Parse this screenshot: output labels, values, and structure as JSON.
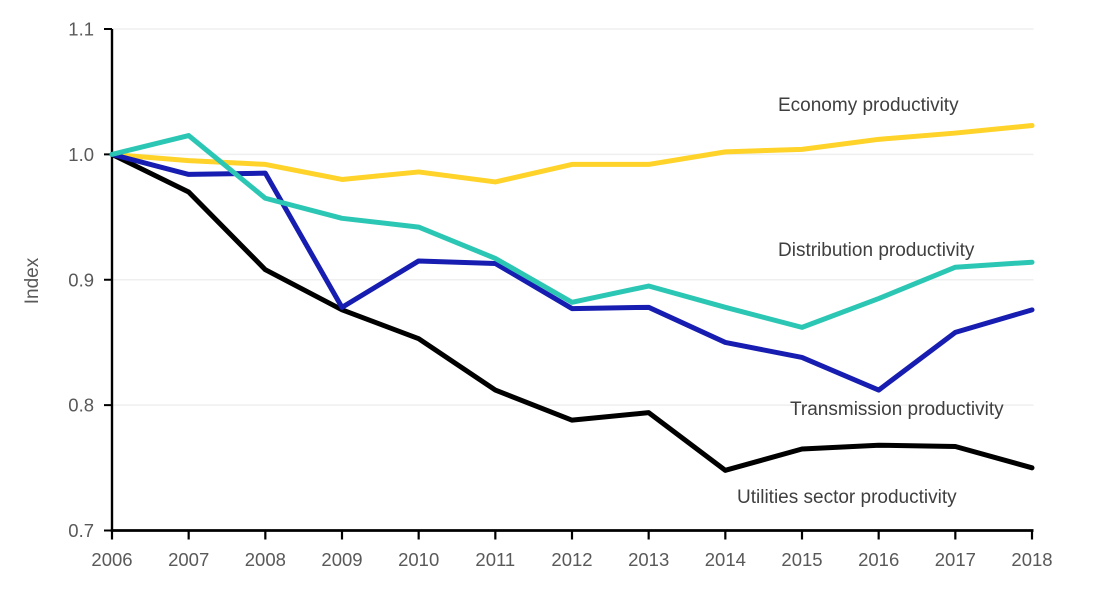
{
  "chart_data": {
    "type": "line",
    "title": "",
    "ylabel": "Index",
    "xlabel": "",
    "x": [
      2006,
      2007,
      2008,
      2009,
      2010,
      2011,
      2012,
      2013,
      2014,
      2015,
      2016,
      2017,
      2018
    ],
    "x_tick_labels": [
      "2006",
      "2007",
      "2008",
      "2009",
      "2010",
      "2011",
      "2012",
      "2013",
      "2014",
      "2015",
      "2016",
      "2017",
      "2018"
    ],
    "ylim": [
      0.7,
      1.1
    ],
    "yticks": [
      1.1,
      1.0,
      0.9,
      0.8,
      0.7
    ],
    "ytick_labels": [
      "1.1",
      "1.0",
      "0.9",
      "0.8",
      "0.7"
    ],
    "grid": true,
    "legend_position": "inline-annotations-right",
    "colors": {
      "axis": "#000000",
      "gridline": "#efefef",
      "tick_label": "#595959",
      "annotation_text": "#3f3f3f"
    },
    "series": [
      {
        "name": "Economy productivity",
        "color": "#ffd329",
        "values": [
          1.0,
          0.995,
          0.992,
          0.98,
          0.986,
          0.978,
          0.992,
          0.992,
          1.002,
          1.004,
          1.012,
          1.017,
          1.023
        ]
      },
      {
        "name": "Distribution productivity",
        "color": "#2cc7b4",
        "values": [
          1.0,
          1.015,
          0.965,
          0.949,
          0.942,
          0.917,
          0.882,
          0.895,
          0.878,
          0.862,
          0.885,
          0.91,
          0.914
        ]
      },
      {
        "name": "Transmission productivity",
        "color": "#161db0",
        "values": [
          1.0,
          0.984,
          0.985,
          0.878,
          0.915,
          0.913,
          0.877,
          0.878,
          0.85,
          0.838,
          0.812,
          0.858,
          0.876
        ]
      },
      {
        "name": "Utilities sector productivity",
        "color": "#000000",
        "values": [
          1.0,
          0.97,
          0.908,
          0.876,
          0.853,
          0.812,
          0.788,
          0.794,
          0.748,
          0.765,
          0.768,
          0.767,
          0.75
        ]
      }
    ]
  }
}
